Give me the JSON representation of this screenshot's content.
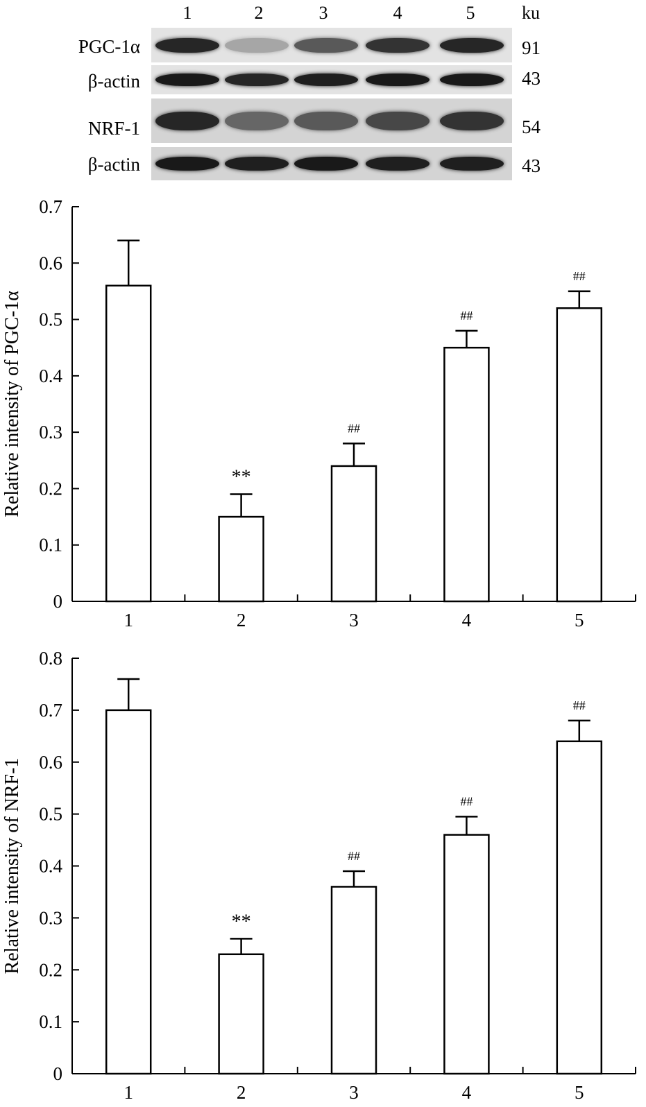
{
  "blot": {
    "lanes": [
      "1",
      "2",
      "3",
      "4",
      "5"
    ],
    "mw_unit": "ku",
    "rows": [
      {
        "label": "PGC-1α",
        "mw": "91",
        "intensity": [
          0.85,
          0.35,
          0.65,
          0.8,
          0.85
        ]
      },
      {
        "label": "β-actin",
        "mw": "43",
        "intensity": [
          0.9,
          0.85,
          0.88,
          0.9,
          0.9
        ]
      },
      {
        "label": "NRF-1",
        "mw": "54",
        "intensity": [
          0.85,
          0.6,
          0.65,
          0.72,
          0.8
        ]
      },
      {
        "label": "β-actin",
        "mw": "43",
        "intensity": [
          0.9,
          0.88,
          0.9,
          0.88,
          0.88
        ]
      }
    ]
  },
  "chart_data": [
    {
      "type": "bar",
      "categories": [
        "1",
        "2",
        "3",
        "4",
        "5"
      ],
      "values": [
        0.56,
        0.15,
        0.24,
        0.45,
        0.52
      ],
      "errors": [
        0.08,
        0.04,
        0.04,
        0.03,
        0.03
      ],
      "annotations": [
        "",
        "**",
        "##",
        "##",
        "##"
      ],
      "ylabel": "Relative intensity of PGC-1α",
      "xlabel": "",
      "ylim": [
        0,
        0.7
      ],
      "yticks": [
        "0",
        "0.1",
        "0.2",
        "0.3",
        "0.4",
        "0.5",
        "0.6",
        "0.7"
      ]
    },
    {
      "type": "bar",
      "categories": [
        "1",
        "2",
        "3",
        "4",
        "5"
      ],
      "values": [
        0.7,
        0.23,
        0.36,
        0.46,
        0.64
      ],
      "errors": [
        0.06,
        0.03,
        0.03,
        0.035,
        0.04
      ],
      "annotations": [
        "",
        "**",
        "##",
        "##",
        "##"
      ],
      "ylabel": "Relative intensity of NRF-1",
      "xlabel": "",
      "ylim": [
        0,
        0.8
      ],
      "yticks": [
        "0",
        "0.1",
        "0.2",
        "0.3",
        "0.4",
        "0.5",
        "0.6",
        "0.7",
        "0.8"
      ]
    }
  ]
}
